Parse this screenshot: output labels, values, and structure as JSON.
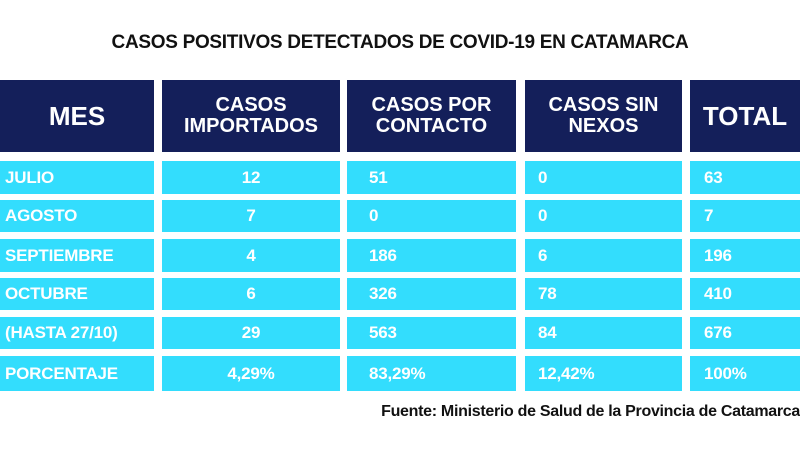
{
  "title": "CASOS POSITIVOS DETECTADOS DE COVID-19 EN CATAMARCA",
  "colors": {
    "header_bg": "#141f5a",
    "cell_bg": "#33ddfd",
    "text": "#ffffff"
  },
  "headers": [
    "MES",
    "CASOS IMPORTADOS",
    "CASOS POR CONTACTO",
    "CASOS SIN NEXOS",
    "TOTAL"
  ],
  "rows": [
    [
      "JULIO",
      "12",
      "51",
      "0",
      "63"
    ],
    [
      "AGOSTO",
      "7",
      "0",
      "0",
      "7"
    ],
    [
      "SEPTIEMBRE",
      "4",
      "186",
      "6",
      "196"
    ],
    [
      "OCTUBRE",
      "6",
      "326",
      "78",
      "410"
    ],
    [
      "(HASTA 27/10)",
      "29",
      "563",
      "84",
      "676"
    ],
    [
      "PORCENTAJE",
      "4,29%",
      "83,29%",
      "12,42%",
      "100%"
    ]
  ],
  "source": "Fuente: Ministerio de Salud de la Provincia de Catamarca"
}
